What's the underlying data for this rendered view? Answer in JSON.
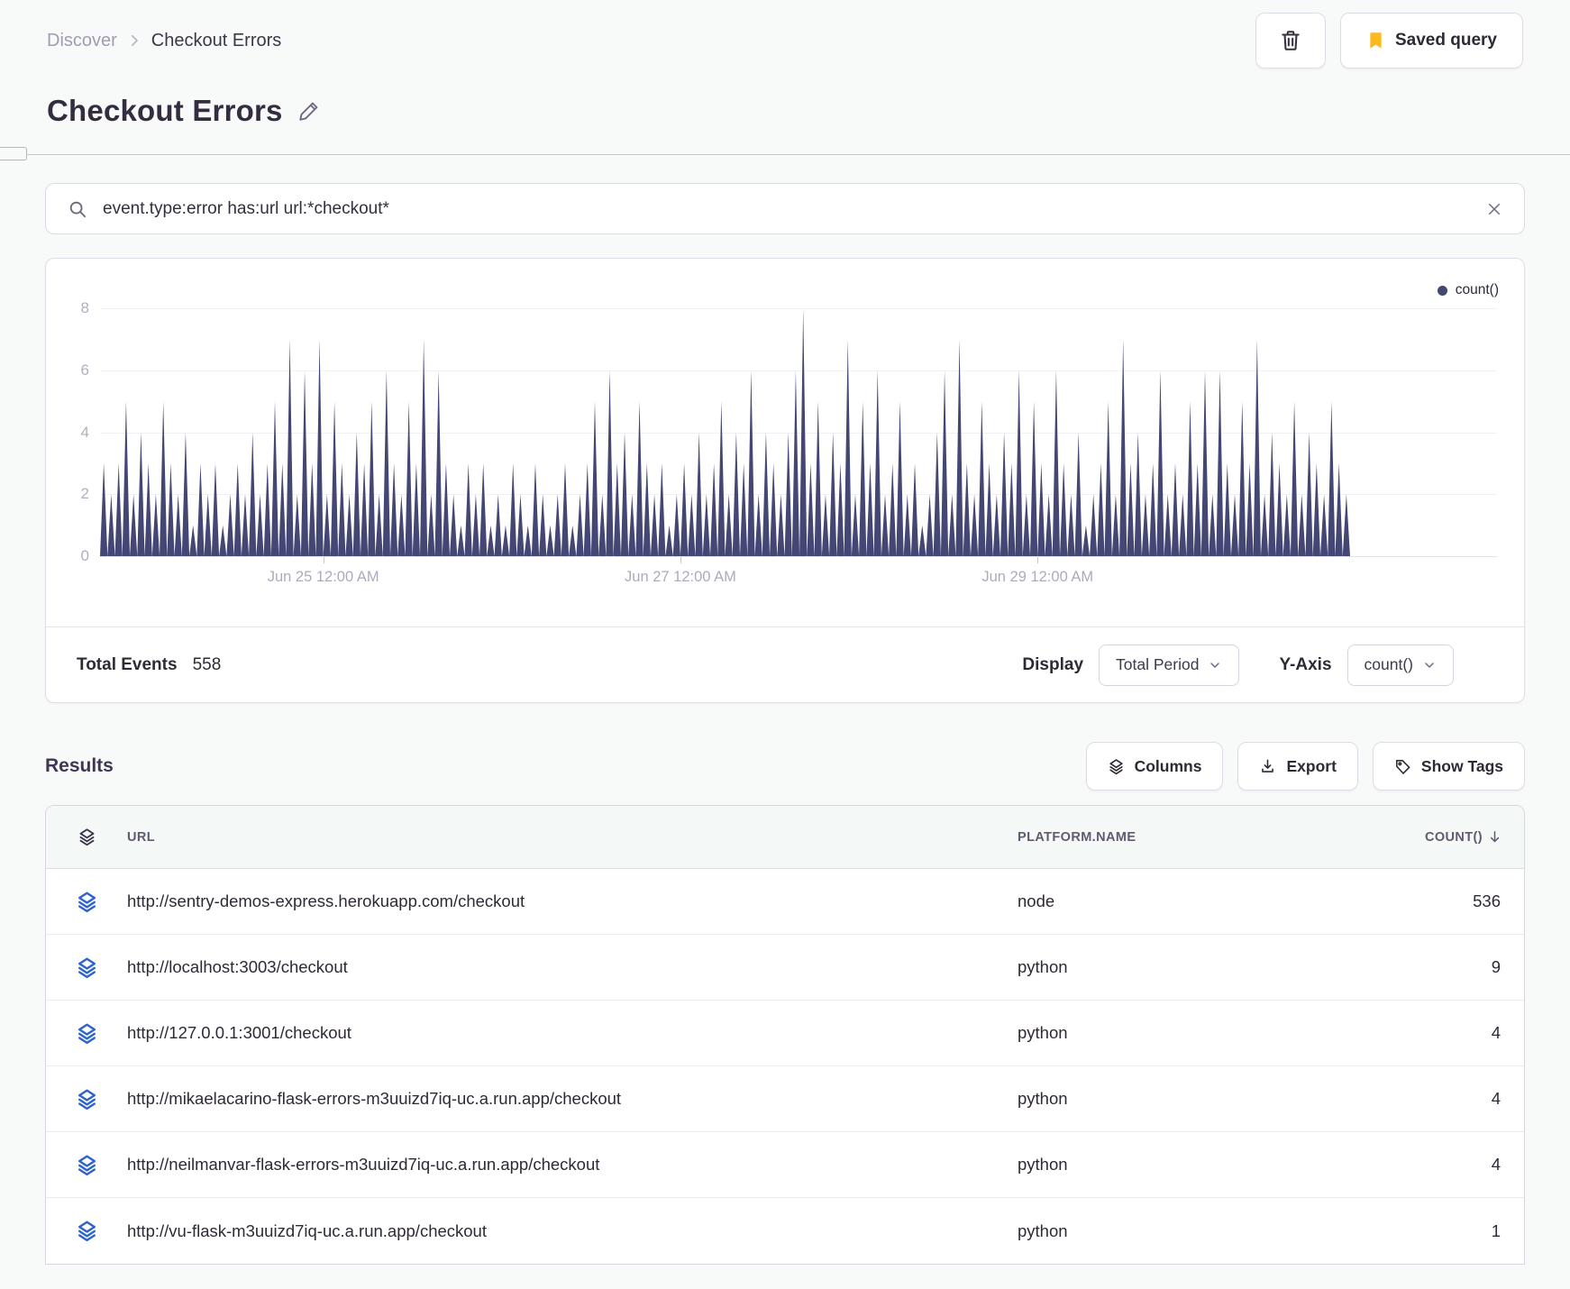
{
  "breadcrumb": {
    "section": "Discover",
    "current": "Checkout Errors"
  },
  "header": {
    "title": "Checkout Errors",
    "saved_query_label": "Saved query"
  },
  "search": {
    "query": "event.type:error has:url url:*checkout*"
  },
  "chart_data": {
    "type": "bar",
    "title": "",
    "xlabel": "",
    "ylabel": "",
    "legend": [
      "count()"
    ],
    "legend_position": "top-right",
    "grid": true,
    "series_color": "#444674",
    "ylim": [
      0,
      8
    ],
    "yticks": [
      0,
      2,
      4,
      6,
      8
    ],
    "x_ticks": [
      {
        "label": "Jun 25 12:00 AM",
        "hour": 30
      },
      {
        "label": "Jun 27 12:00 AM",
        "hour": 78
      },
      {
        "label": "Jun 29 12:00 AM",
        "hour": 126
      }
    ],
    "values": [
      3,
      2,
      3,
      5,
      2,
      4,
      3,
      2,
      5,
      3,
      2,
      4,
      1,
      3,
      2,
      3,
      1,
      2,
      3,
      2,
      4,
      2,
      3,
      5,
      3,
      7,
      2,
      6,
      3,
      7,
      2,
      5,
      3,
      2,
      4,
      3,
      5,
      2,
      6,
      3,
      2,
      5,
      3,
      7,
      2,
      6,
      3,
      2,
      1,
      3,
      2,
      3,
      1,
      2,
      1,
      3,
      2,
      1,
      3,
      2,
      1,
      2,
      3,
      1,
      2,
      3,
      5,
      2,
      6,
      3,
      4,
      2,
      5,
      3,
      2,
      3,
      1,
      2,
      3,
      2,
      4,
      2,
      3,
      5,
      2,
      4,
      3,
      6,
      2,
      4,
      3,
      2,
      4,
      6,
      8,
      3,
      5,
      2,
      4,
      3,
      7,
      2,
      5,
      3,
      6,
      2,
      3,
      5,
      2,
      3,
      1,
      2,
      4,
      6,
      2,
      7,
      3,
      2,
      5,
      3,
      2,
      4,
      3,
      6,
      2,
      5,
      3,
      2,
      6,
      3,
      2,
      4,
      1,
      2,
      3,
      5,
      2,
      7,
      3,
      4,
      2,
      3,
      6,
      2,
      3,
      2,
      5,
      3,
      6,
      2,
      6,
      3,
      2,
      5,
      3,
      7,
      2,
      4,
      3,
      2,
      5,
      2,
      4,
      3,
      2,
      5,
      3,
      2
    ]
  },
  "chart_footer": {
    "total_label": "Total Events",
    "total_value": "558",
    "display_label": "Display",
    "display_value": "Total Period",
    "yaxis_label": "Y-Axis",
    "yaxis_value": "count()"
  },
  "results": {
    "heading": "Results",
    "buttons": {
      "columns": "Columns",
      "export": "Export",
      "show_tags": "Show Tags"
    }
  },
  "table": {
    "columns": [
      "URL",
      "PLATFORM.NAME",
      "COUNT()"
    ],
    "rows": [
      {
        "url": "http://sentry-demos-express.herokuapp.com/checkout",
        "platform": "node",
        "count": "536"
      },
      {
        "url": "http://localhost:3003/checkout",
        "platform": "python",
        "count": "9"
      },
      {
        "url": "http://127.0.0.1:3001/checkout",
        "platform": "python",
        "count": "4"
      },
      {
        "url": "http://mikaelacarino-flask-errors-m3uuizd7iq-uc.a.run.app/checkout",
        "platform": "python",
        "count": "4"
      },
      {
        "url": "http://neilmanvar-flask-errors-m3uuizd7iq-uc.a.run.app/checkout",
        "platform": "python",
        "count": "4"
      },
      {
        "url": "http://vu-flask-m3uuizd7iq-uc.a.run.app/checkout",
        "platform": "python",
        "count": "1"
      }
    ]
  },
  "colors": {
    "chart_series": "#444674",
    "bookmark_yellow": "#fdb81c",
    "row_icon_blue": "#2d63cf",
    "page_bg": "#f8faf9"
  }
}
